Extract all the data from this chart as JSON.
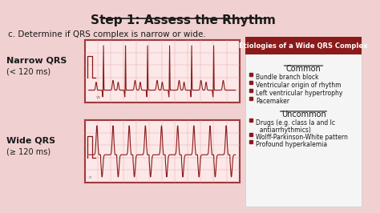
{
  "title": "Step 1: Assess the Rhythm",
  "subtitle": "c. Determine if QRS complex is narrow or wide.",
  "bg_color": "#f0d0d0",
  "title_color": "#1a1a1a",
  "subtitle_color": "#1a1a1a",
  "narrow_label": "Narrow QRS",
  "narrow_sublabel": "(< 120 ms)",
  "wide_label": "Wide QRS",
  "wide_sublabel": "(≥ 120 ms)",
  "box_header": "Etiologies of a Wide QRS Complex",
  "box_header_bg": "#8b1a1a",
  "box_header_color": "#ffffff",
  "box_bg": "#f5f5f5",
  "ecg_border_color": "#8b2020",
  "ecg_bg": "#fce8e8",
  "ecg_grid_color": "#e8a0a0",
  "ecg_line_color": "#8b1a1a",
  "common_title": "Common",
  "common_items": [
    "Bundle branch block",
    "Ventricular origin of rhythm",
    "Left ventricular hypertrophy",
    "Pacemaker"
  ],
  "uncommon_title": "Uncommon",
  "uncommon_items": [
    "Drugs (e.g. class Ia and Ic",
    "  antiarrhythmics)",
    "Wolff-Parkinson-White pattern",
    "Profound hyperkalemia"
  ],
  "uncommon_bullets": [
    true,
    false,
    true,
    true
  ],
  "bullet_color": "#8b1a1a",
  "text_color": "#1a1a1a"
}
